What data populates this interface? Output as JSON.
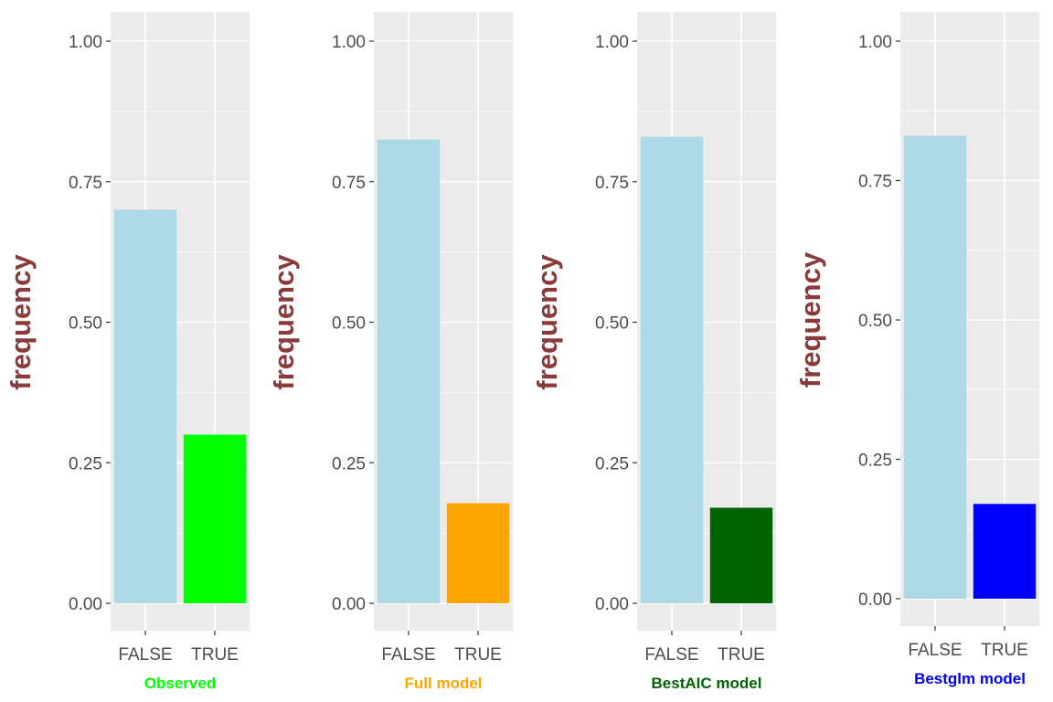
{
  "chart_data": [
    {
      "type": "bar",
      "categories": [
        "FALSE",
        "TRUE"
      ],
      "values": [
        0.7,
        0.3
      ],
      "colors": [
        "#add8e6",
        "#00ff00"
      ],
      "xlabel": "Observed",
      "xlabel_color": "#00ff00",
      "ylabel": "frequency",
      "ylim": [
        0,
        1
      ],
      "yticks": [
        "0.00",
        "0.25",
        "0.50",
        "0.75",
        "1.00"
      ],
      "grid": true
    },
    {
      "type": "bar",
      "categories": [
        "FALSE",
        "TRUE"
      ],
      "values": [
        0.825,
        0.178
      ],
      "colors": [
        "#add8e6",
        "#ffa500"
      ],
      "xlabel": "Full model",
      "xlabel_color": "#ffa500",
      "ylabel": "frequency",
      "ylim": [
        0,
        1
      ],
      "yticks": [
        "0.00",
        "0.25",
        "0.50",
        "0.75",
        "1.00"
      ],
      "grid": true
    },
    {
      "type": "bar",
      "categories": [
        "FALSE",
        "TRUE"
      ],
      "values": [
        0.83,
        0.17
      ],
      "colors": [
        "#add8e6",
        "#006400"
      ],
      "xlabel": "BestAIC model",
      "xlabel_color": "#006400",
      "ylabel": "frequency",
      "ylim": [
        0,
        1
      ],
      "yticks": [
        "0.00",
        "0.25",
        "0.50",
        "0.75",
        "1.00"
      ],
      "grid": true
    },
    {
      "type": "bar",
      "categories": [
        "FALSE",
        "TRUE"
      ],
      "values": [
        0.83,
        0.17
      ],
      "colors": [
        "#add8e6",
        "#0000ff"
      ],
      "xlabel": "Bestglm model",
      "xlabel_color": "#0000ff",
      "ylabel": "frequency",
      "ylim": [
        0,
        1
      ],
      "yticks": [
        "0.00",
        "0.25",
        "0.50",
        "0.75",
        "1.00"
      ],
      "grid": true
    }
  ],
  "style": {
    "panel_background": "#ebebeb",
    "grid_color": "#ffffff",
    "axis_text_color": "#4d4d4d",
    "ylabel_color": "#8b3a3a"
  }
}
